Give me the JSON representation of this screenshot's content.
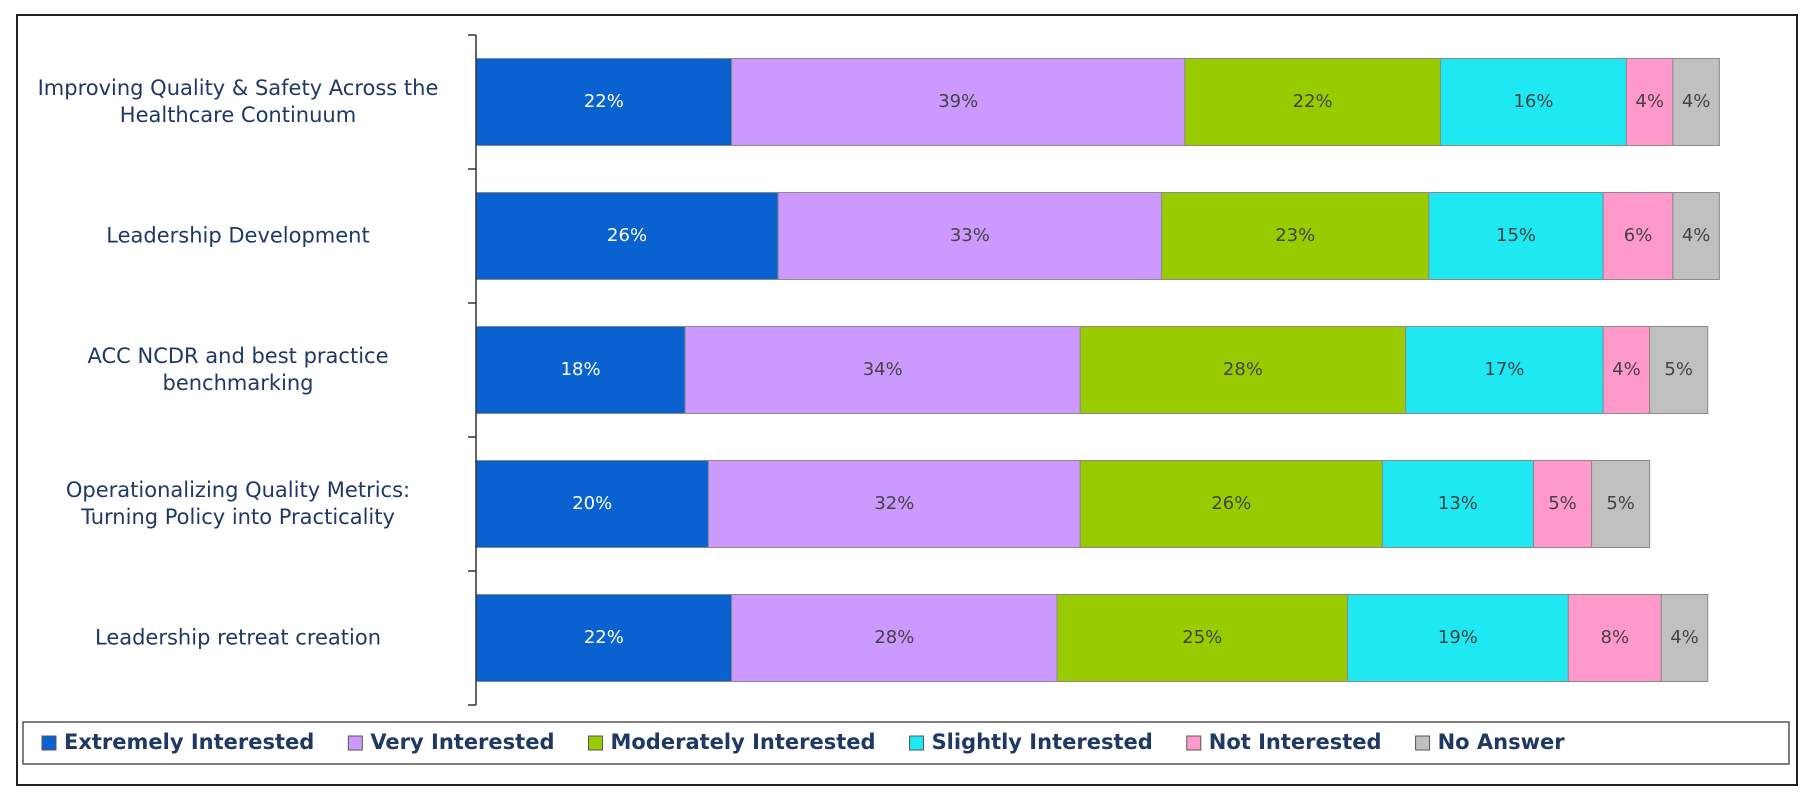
{
  "chart_data": {
    "type": "stacked-bar-horizontal",
    "categories": [
      "Improving Quality & Safety Across the Healthcare Continuum",
      "Leadership Development",
      "ACC NCDR and best practice benchmarking",
      "Operationalizing Quality Metrics: Turning Policy into Practicality",
      "Leadership retreat creation"
    ],
    "xlim": [
      0,
      108
    ],
    "legend": "bottom",
    "series": [
      {
        "name": "Extremely Interested",
        "color": "#0a62d0",
        "values": [
          22,
          26,
          18,
          20,
          22
        ],
        "value_labels": [
          "22%",
          "26%",
          "18%",
          "20%",
          "22%"
        ]
      },
      {
        "name": "Very Interested",
        "color": "#cc99ff",
        "values": [
          39,
          33,
          34,
          32,
          28
        ],
        "value_labels": [
          "39%",
          "33%",
          "34%",
          "32%",
          "28%"
        ]
      },
      {
        "name": "Moderately Interested",
        "color": "#99cc00",
        "values": [
          22,
          23,
          28,
          26,
          25
        ],
        "value_labels": [
          "22%",
          "23%",
          "28%",
          "26%",
          "25%"
        ]
      },
      {
        "name": "Slightly Interested",
        "color": "#1ee8f2",
        "values": [
          16,
          15,
          17,
          13,
          19
        ],
        "value_labels": [
          "16%",
          "15%",
          "17%",
          "13%",
          "19%"
        ]
      },
      {
        "name": "Not Interested",
        "color": "#ff99cc",
        "values": [
          4,
          6,
          4,
          5,
          8
        ],
        "value_labels": [
          "4%",
          "6%",
          "4%",
          "5%",
          "8%"
        ]
      },
      {
        "name": "No Answer",
        "color": "#c0c0c0",
        "values": [
          4,
          4,
          5,
          5,
          4
        ],
        "value_labels": [
          "4%",
          "4%",
          "5%",
          "5%",
          "4%"
        ]
      }
    ]
  }
}
